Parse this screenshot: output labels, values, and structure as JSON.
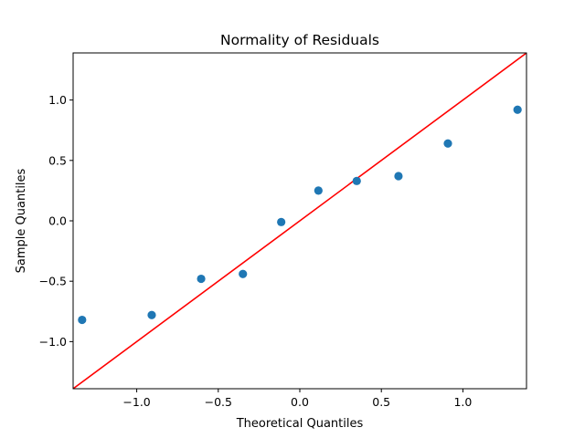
{
  "chart_data": {
    "type": "scatter",
    "title": "Normality of Residuals",
    "xlabel": "Theoretical Quantiles",
    "ylabel": "Sample Quantiles",
    "xlim": [
      -1.39,
      1.39
    ],
    "ylim": [
      -1.39,
      1.39
    ],
    "xticks": [
      -1.0,
      -0.5,
      0.0,
      0.5,
      1.0
    ],
    "xtick_labels": [
      "−1.0",
      "−0.5",
      "0.0",
      "0.5",
      "1.0"
    ],
    "yticks": [
      -1.0,
      -0.5,
      0.0,
      0.5,
      1.0
    ],
    "ytick_labels": [
      "−1.0",
      "−0.5",
      "0.0",
      "0.5",
      "1.0"
    ],
    "grid": false,
    "series": [
      {
        "x": [
          -1.335,
          -0.908,
          -0.605,
          -0.349,
          -0.114,
          0.114,
          0.349,
          0.605,
          0.908,
          1.335
        ],
        "y": [
          -0.82,
          -0.78,
          -0.48,
          -0.44,
          -0.01,
          0.25,
          0.33,
          0.37,
          0.64,
          0.92
        ],
        "color": "#1f77b4"
      }
    ],
    "reference_line": {
      "slope": 1,
      "intercept": 0,
      "color": "#ff0000"
    }
  }
}
